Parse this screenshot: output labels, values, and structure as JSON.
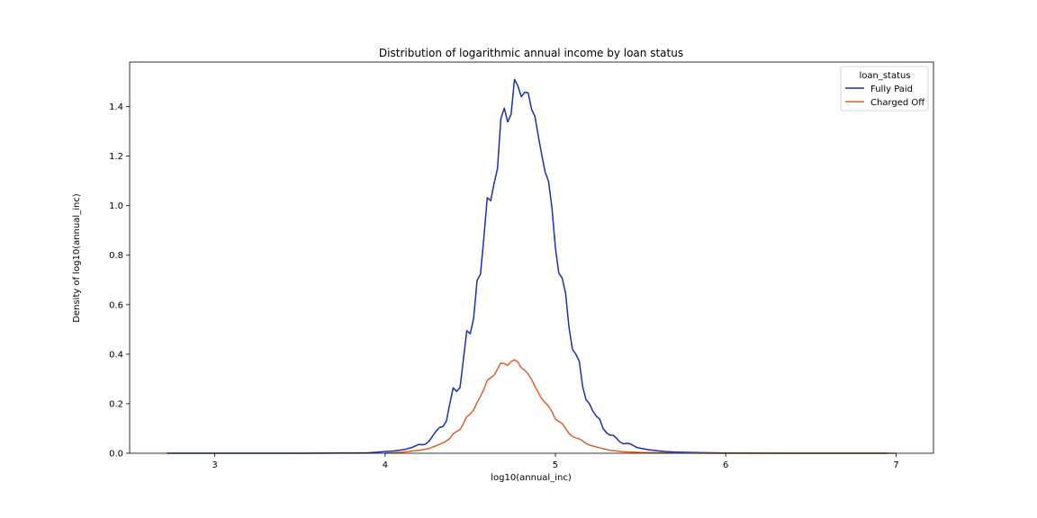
{
  "chart_data": {
    "type": "line",
    "title": "Distribution of logarithmic annual income by loan status",
    "xlabel": "log10(annual_inc)",
    "ylabel": "Density of log10(annual_inc)",
    "xlim": [
      2.5,
      7.22
    ],
    "ylim": [
      0.0,
      1.58
    ],
    "xticks": [
      3,
      4,
      5,
      6,
      7
    ],
    "xtick_labels": [
      "3",
      "4",
      "5",
      "6",
      "7"
    ],
    "yticks": [
      0.0,
      0.2,
      0.4,
      0.6,
      0.8,
      1.0,
      1.2,
      1.4
    ],
    "ytick_labels": [
      "0.0",
      "0.2",
      "0.4",
      "0.6",
      "0.8",
      "1.0",
      "1.2",
      "1.4"
    ],
    "grid": false,
    "legend": {
      "title": "loan_status",
      "placement": "top-right",
      "entries": [
        "Fully Paid",
        "Charged Off"
      ]
    },
    "series": [
      {
        "name": "Fully Paid",
        "color": "#1a33a0",
        "points": [
          [
            2.72,
            0.0
          ],
          [
            3.5,
            0.0
          ],
          [
            3.8,
            0.001
          ],
          [
            3.9,
            0.002
          ],
          [
            3.95,
            0.004
          ],
          [
            4.0,
            0.007
          ],
          [
            4.05,
            0.009
          ],
          [
            4.08,
            0.012
          ],
          [
            4.12,
            0.016
          ],
          [
            4.16,
            0.024
          ],
          [
            4.18,
            0.03
          ],
          [
            4.2,
            0.036
          ],
          [
            4.22,
            0.034
          ],
          [
            4.24,
            0.038
          ],
          [
            4.26,
            0.05
          ],
          [
            4.28,
            0.07
          ],
          [
            4.3,
            0.09
          ],
          [
            4.32,
            0.104
          ],
          [
            4.34,
            0.108
          ],
          [
            4.36,
            0.13
          ],
          [
            4.38,
            0.2
          ],
          [
            4.4,
            0.264
          ],
          [
            4.42,
            0.25
          ],
          [
            4.44,
            0.265
          ],
          [
            4.46,
            0.38
          ],
          [
            4.48,
            0.495
          ],
          [
            4.5,
            0.483
          ],
          [
            4.52,
            0.545
          ],
          [
            4.54,
            0.697
          ],
          [
            4.56,
            0.723
          ],
          [
            4.58,
            0.87
          ],
          [
            4.6,
            1.032
          ],
          [
            4.62,
            1.02
          ],
          [
            4.64,
            1.09
          ],
          [
            4.66,
            1.15
          ],
          [
            4.68,
            1.352
          ],
          [
            4.7,
            1.394
          ],
          [
            4.72,
            1.338
          ],
          [
            4.74,
            1.37
          ],
          [
            4.76,
            1.51
          ],
          [
            4.78,
            1.483
          ],
          [
            4.8,
            1.44
          ],
          [
            4.82,
            1.458
          ],
          [
            4.84,
            1.456
          ],
          [
            4.86,
            1.39
          ],
          [
            4.88,
            1.36
          ],
          [
            4.9,
            1.28
          ],
          [
            4.92,
            1.205
          ],
          [
            4.94,
            1.135
          ],
          [
            4.96,
            1.098
          ],
          [
            4.98,
            0.99
          ],
          [
            5.0,
            0.83
          ],
          [
            5.02,
            0.728
          ],
          [
            5.04,
            0.707
          ],
          [
            5.06,
            0.645
          ],
          [
            5.08,
            0.508
          ],
          [
            5.1,
            0.42
          ],
          [
            5.12,
            0.4
          ],
          [
            5.14,
            0.372
          ],
          [
            5.16,
            0.27
          ],
          [
            5.18,
            0.216
          ],
          [
            5.2,
            0.2
          ],
          [
            5.22,
            0.17
          ],
          [
            5.24,
            0.15
          ],
          [
            5.26,
            0.138
          ],
          [
            5.28,
            0.1
          ],
          [
            5.3,
            0.083
          ],
          [
            5.32,
            0.073
          ],
          [
            5.34,
            0.072
          ],
          [
            5.36,
            0.06
          ],
          [
            5.38,
            0.045
          ],
          [
            5.4,
            0.038
          ],
          [
            5.42,
            0.04
          ],
          [
            5.44,
            0.038
          ],
          [
            5.46,
            0.03
          ],
          [
            5.48,
            0.023
          ],
          [
            5.5,
            0.02
          ],
          [
            5.55,
            0.014
          ],
          [
            5.6,
            0.01
          ],
          [
            5.65,
            0.007
          ],
          [
            5.7,
            0.005
          ],
          [
            5.8,
            0.003
          ],
          [
            6.0,
            0.001
          ],
          [
            6.5,
            0.0
          ],
          [
            6.95,
            0.0
          ]
        ]
      },
      {
        "name": "Charged Off",
        "color": "#d9622b",
        "points": [
          [
            4.0,
            0.0
          ],
          [
            4.05,
            0.002
          ],
          [
            4.1,
            0.004
          ],
          [
            4.15,
            0.008
          ],
          [
            4.2,
            0.012
          ],
          [
            4.25,
            0.018
          ],
          [
            4.3,
            0.03
          ],
          [
            4.35,
            0.045
          ],
          [
            4.38,
            0.06
          ],
          [
            4.4,
            0.078
          ],
          [
            4.42,
            0.088
          ],
          [
            4.44,
            0.095
          ],
          [
            4.46,
            0.12
          ],
          [
            4.48,
            0.148
          ],
          [
            4.5,
            0.158
          ],
          [
            4.52,
            0.175
          ],
          [
            4.54,
            0.205
          ],
          [
            4.56,
            0.23
          ],
          [
            4.58,
            0.258
          ],
          [
            4.6,
            0.295
          ],
          [
            4.62,
            0.305
          ],
          [
            4.64,
            0.315
          ],
          [
            4.66,
            0.34
          ],
          [
            4.68,
            0.365
          ],
          [
            4.7,
            0.362
          ],
          [
            4.72,
            0.355
          ],
          [
            4.74,
            0.37
          ],
          [
            4.76,
            0.378
          ],
          [
            4.78,
            0.368
          ],
          [
            4.8,
            0.345
          ],
          [
            4.82,
            0.335
          ],
          [
            4.84,
            0.32
          ],
          [
            4.86,
            0.298
          ],
          [
            4.88,
            0.27
          ],
          [
            4.9,
            0.245
          ],
          [
            4.92,
            0.22
          ],
          [
            4.94,
            0.205
          ],
          [
            4.96,
            0.19
          ],
          [
            4.98,
            0.168
          ],
          [
            5.0,
            0.138
          ],
          [
            5.02,
            0.128
          ],
          [
            5.04,
            0.12
          ],
          [
            5.06,
            0.1
          ],
          [
            5.08,
            0.08
          ],
          [
            5.1,
            0.068
          ],
          [
            5.12,
            0.062
          ],
          [
            5.14,
            0.058
          ],
          [
            5.16,
            0.05
          ],
          [
            5.18,
            0.04
          ],
          [
            5.2,
            0.033
          ],
          [
            5.24,
            0.026
          ],
          [
            5.28,
            0.018
          ],
          [
            5.32,
            0.012
          ],
          [
            5.36,
            0.009
          ],
          [
            5.4,
            0.006
          ],
          [
            5.5,
            0.003
          ],
          [
            5.7,
            0.001
          ],
          [
            6.0,
            0.0
          ],
          [
            6.5,
            0.0
          ],
          [
            7.0,
            0.0
          ]
        ]
      }
    ]
  }
}
